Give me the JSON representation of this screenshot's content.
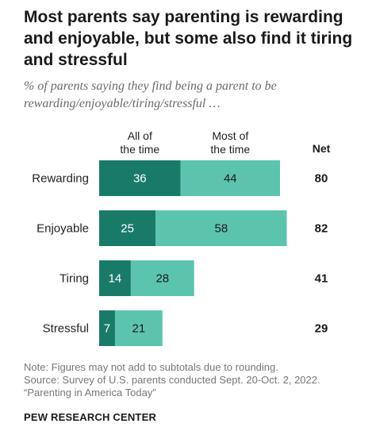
{
  "title": "Most parents say parenting is rewarding and enjoyable, but some also find it tiring and stressful",
  "subtitle": "% of parents saying they find being a parent to be rewarding/enjoyable/tiring/stressful …",
  "chart_data": {
    "type": "bar",
    "orientation": "horizontal",
    "stacked": true,
    "categories": [
      "Rewarding",
      "Enjoyable",
      "Tiring",
      "Stressful"
    ],
    "series": [
      {
        "name": "All of the time",
        "values": [
          36,
          25,
          14,
          7
        ],
        "color": "#1a7a68"
      },
      {
        "name": "Most of the time",
        "values": [
          44,
          58,
          28,
          21
        ],
        "color": "#5cc4ad"
      }
    ],
    "net_label": "Net",
    "net": [
      80,
      82,
      41,
      29
    ],
    "grid": false,
    "legend_placement": "top"
  },
  "note": "Note: Figures may not add to subtotals due to rounding.",
  "source": "Source: Survey of U.S. parents conducted Sept. 20-Oct. 2, 2022.",
  "report": "“Parenting in America Today”",
  "brand": "PEW RESEARCH CENTER"
}
